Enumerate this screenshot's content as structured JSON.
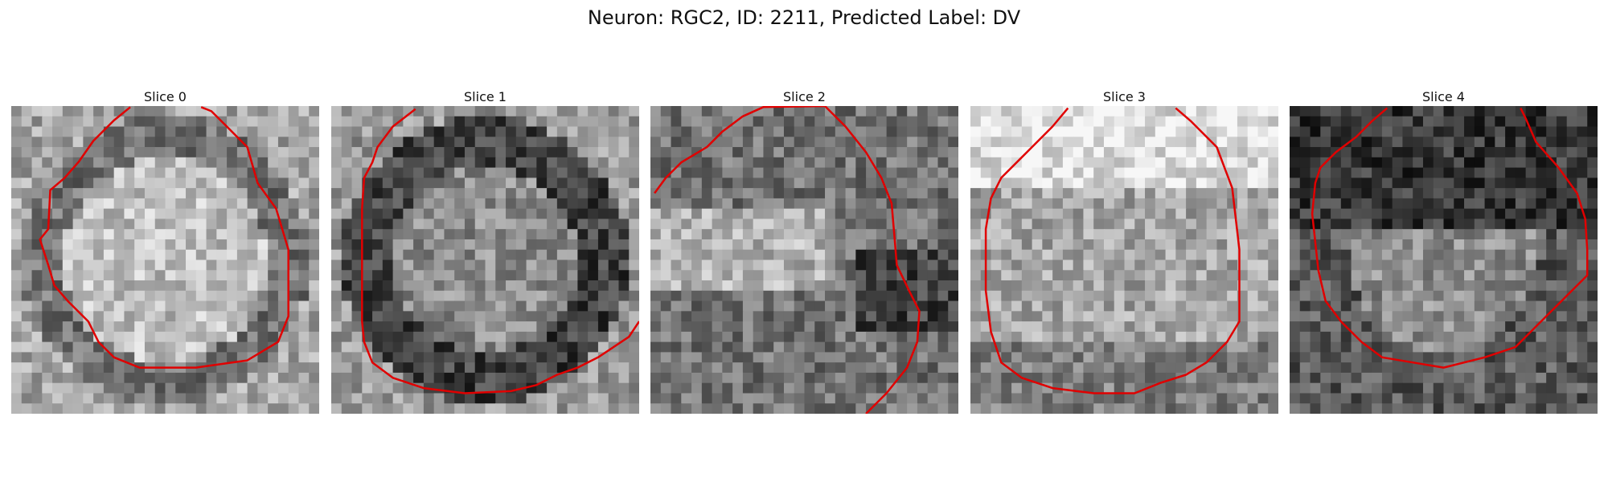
{
  "figure": {
    "title": "Neuron: RGC2, ID: 2211, Predicted Label: DV"
  },
  "panels": [
    {
      "title": "Slice 0",
      "style": "bright-center"
    },
    {
      "title": "Slice 1",
      "style": "dark-ring"
    },
    {
      "title": "Slice 2",
      "style": "bright-left-band"
    },
    {
      "title": "Slice 3",
      "style": "bright-top"
    },
    {
      "title": "Slice 4",
      "style": "dark-top"
    }
  ],
  "colors": {
    "contour": "#e00000",
    "background": "#ffffff"
  }
}
